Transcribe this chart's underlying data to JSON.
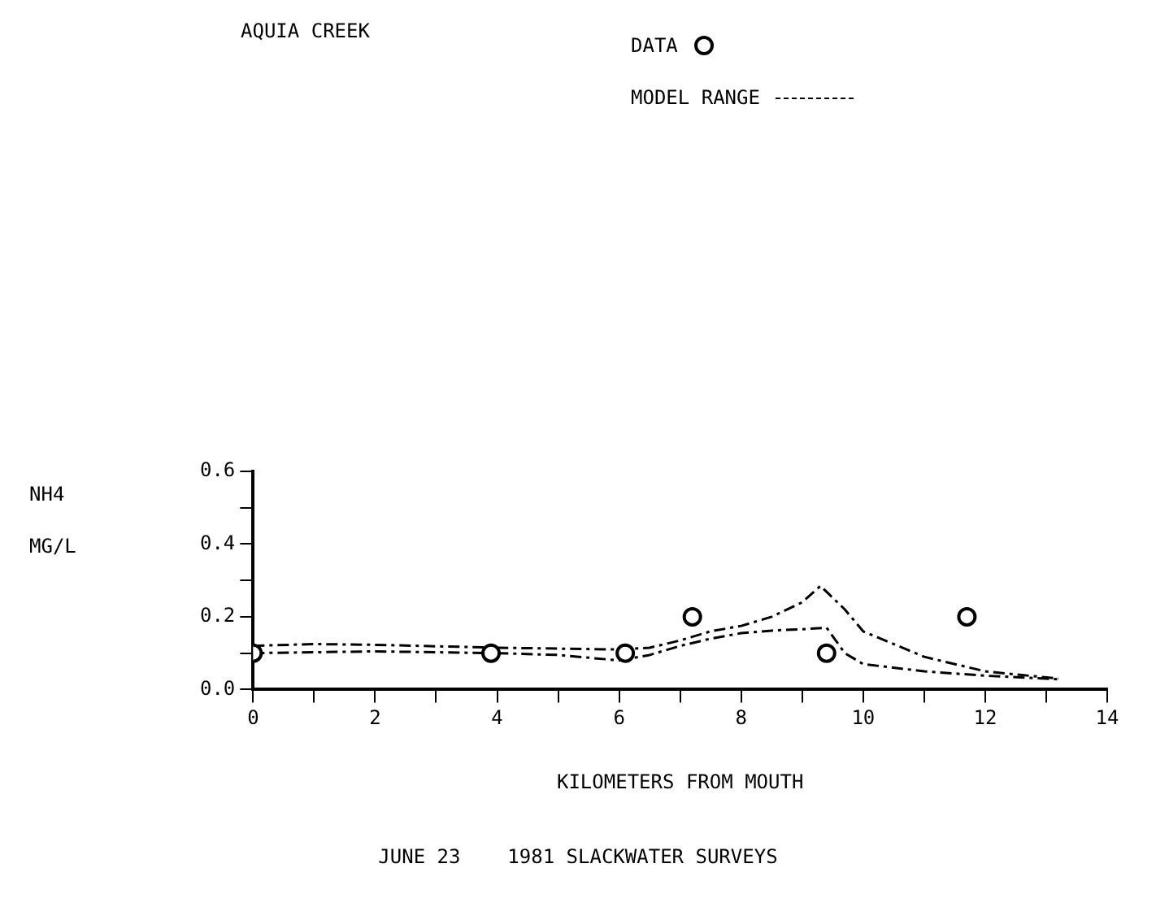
{
  "chart_data": {
    "type": "line",
    "title": "AQUIA CREEK",
    "xlabel": "KILOMETERS FROM MOUTH",
    "ylabel": "NH4\nMG/L",
    "annotations": [
      "JUNE 23    1981 SLACKWATER SURVEYS"
    ],
    "legend": "top right",
    "xlim": [
      0,
      14
    ],
    "xticks": [
      0,
      {
        "value": 1,
        "label": null
      },
      2,
      {
        "value": 3,
        "label": null
      },
      4,
      {
        "value": 5,
        "label": null
      },
      6,
      {
        "value": 7,
        "label": null
      },
      8,
      {
        "value": 9,
        "label": null
      },
      10,
      {
        "value": 11,
        "label": null
      },
      12,
      {
        "value": 13,
        "label": null
      },
      14
    ],
    "ylim": [
      0,
      0.6
    ],
    "yticks": [
      {
        "value": 0,
        "label": "0.0"
      },
      {
        "value": 0.1,
        "label": null
      },
      0.2,
      {
        "value": 0.3,
        "label": null
      },
      0.4,
      {
        "value": 0.5,
        "label": null
      },
      0.6
    ],
    "series": [
      {
        "name": "DATA",
        "type": "scatter",
        "marker": "circle",
        "color": "#000000",
        "x": [
          0,
          3.9,
          6.1,
          7.2,
          9.4,
          11.7
        ],
        "values": [
          0.1,
          0.1,
          0.1,
          0.2,
          0.1,
          0.2
        ]
      },
      {
        "name": "MODEL RANGE",
        "marker": "none",
        "line_style": "dashed",
        "color": "#000000",
        "x": [
          0,
          1,
          2,
          4,
          6,
          6.5,
          7,
          7.5,
          8,
          8.5,
          9,
          9.3,
          9.7,
          10,
          11,
          12,
          13.2
        ],
        "values": [
          0.12,
          0.125,
          0.123,
          0.115,
          0.11,
          0.115,
          0.135,
          0.16,
          0.175,
          0.2,
          0.24,
          0.285,
          0.22,
          0.16,
          0.09,
          0.05,
          0.03
        ]
      },
      {
        "marker": "none",
        "line_style": "dashed",
        "color": "#000000",
        "x": [
          0,
          2,
          4,
          5,
          6,
          6.5,
          7,
          7.5,
          8,
          8.5,
          9,
          9.4,
          9.7,
          10,
          11,
          12,
          13.2
        ],
        "values": [
          0.1,
          0.105,
          0.1,
          0.095,
          0.08,
          0.095,
          0.12,
          0.14,
          0.155,
          0.162,
          0.166,
          0.17,
          0.1,
          0.07,
          0.05,
          0.038,
          0.028
        ]
      }
    ]
  }
}
